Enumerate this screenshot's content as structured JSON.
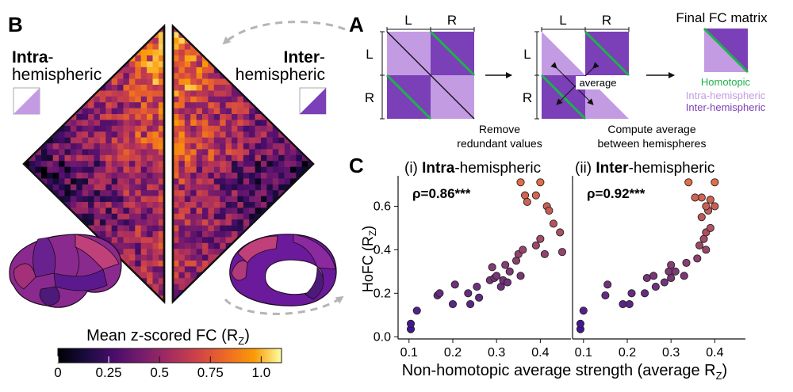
{
  "panel_labels": {
    "a": "A",
    "b": "B",
    "c": "C"
  },
  "panel_a": {
    "left_label": "L",
    "right_label": "R",
    "step1_caption_line1": "Remove",
    "step1_caption_line2": "redundant values",
    "average_label": "average",
    "step2_caption_line1": "Compute average",
    "step2_caption_line2": "between hemispheres",
    "final_title": "Final FC matrix",
    "legend": [
      {
        "label": "Homotopic",
        "color": "#1db34a"
      },
      {
        "label": "Intra-hemispheric",
        "color": "#c39be3"
      },
      {
        "label": "Inter-hemispheric",
        "color": "#7b3fb8"
      }
    ]
  },
  "panel_b": {
    "intra_bold": "Intra",
    "intra_rest": "-",
    "intra_line2": "hemispheric",
    "inter_bold": "Inter",
    "inter_rest": "-",
    "inter_line2": "hemispheric",
    "colorbar": {
      "title_main": "Mean z-scored FC (R",
      "title_sub": "Z",
      "title_close": ")",
      "ticks": [
        "0",
        "0.25",
        "0.5",
        "0.75",
        "1.0"
      ],
      "range": [
        0,
        1.1
      ]
    }
  },
  "colors": {
    "light_purple": "#c39be3",
    "dark_purple": "#7b3fb8",
    "green": "#1db34a",
    "arrow_gray": "#b5b5b5"
  },
  "chart_data": [
    {
      "type": "scatter",
      "title_prefix": "(i) ",
      "title_bold": "Intra",
      "title_rest": "-hemispheric",
      "annotation": "ρ=0.86***",
      "ylabel_main": "HoFC (R",
      "ylabel_sub": "Z",
      "ylabel_close": ")",
      "xlim": [
        0.075,
        0.47
      ],
      "ylim": [
        -0.01,
        0.74
      ],
      "xticks": [
        "0.1",
        "0.2",
        "0.3",
        "0.4"
      ],
      "yticks": [
        "0.0",
        "0.2",
        "0.4",
        "0.6"
      ],
      "points": [
        [
          0.104,
          0.035
        ],
        [
          0.104,
          0.06
        ],
        [
          0.118,
          0.12
        ],
        [
          0.165,
          0.19
        ],
        [
          0.17,
          0.2
        ],
        [
          0.2,
          0.15
        ],
        [
          0.205,
          0.24
        ],
        [
          0.235,
          0.2
        ],
        [
          0.24,
          0.15
        ],
        [
          0.255,
          0.23
        ],
        [
          0.26,
          0.18
        ],
        [
          0.285,
          0.26
        ],
        [
          0.29,
          0.32
        ],
        [
          0.295,
          0.27
        ],
        [
          0.3,
          0.28
        ],
        [
          0.31,
          0.23
        ],
        [
          0.315,
          0.26
        ],
        [
          0.32,
          0.33
        ],
        [
          0.325,
          0.25
        ],
        [
          0.33,
          0.3
        ],
        [
          0.345,
          0.35
        ],
        [
          0.35,
          0.38
        ],
        [
          0.36,
          0.4
        ],
        [
          0.355,
          0.28
        ],
        [
          0.39,
          0.42
        ],
        [
          0.41,
          0.38
        ],
        [
          0.4,
          0.45
        ],
        [
          0.43,
          0.52
        ],
        [
          0.445,
          0.48
        ],
        [
          0.45,
          0.39
        ],
        [
          0.415,
          0.6
        ],
        [
          0.42,
          0.58
        ],
        [
          0.365,
          0.65
        ],
        [
          0.37,
          0.62
        ],
        [
          0.39,
          0.65
        ],
        [
          0.355,
          0.71
        ],
        [
          0.4,
          0.71
        ]
      ]
    },
    {
      "type": "scatter",
      "title_prefix": "(ii) ",
      "title_bold": "Inter",
      "title_rest": "-hemispheric",
      "annotation": "ρ=0.92***",
      "xlabel_main": "Non-homotopic average strength (average R",
      "xlabel_sub": "Z",
      "xlabel_close": ")",
      "xlim": [
        0.075,
        0.47
      ],
      "ylim": [
        -0.01,
        0.74
      ],
      "xticks": [
        "0.1",
        "0.2",
        "0.3",
        "0.4"
      ],
      "points": [
        [
          0.093,
          0.035
        ],
        [
          0.093,
          0.06
        ],
        [
          0.1,
          0.12
        ],
        [
          0.15,
          0.19
        ],
        [
          0.155,
          0.24
        ],
        [
          0.19,
          0.15
        ],
        [
          0.205,
          0.15
        ],
        [
          0.21,
          0.2
        ],
        [
          0.24,
          0.2
        ],
        [
          0.245,
          0.27
        ],
        [
          0.26,
          0.28
        ],
        [
          0.265,
          0.23
        ],
        [
          0.285,
          0.25
        ],
        [
          0.295,
          0.3
        ],
        [
          0.3,
          0.33
        ],
        [
          0.3,
          0.27
        ],
        [
          0.31,
          0.3
        ],
        [
          0.33,
          0.28
        ],
        [
          0.335,
          0.34
        ],
        [
          0.36,
          0.36
        ],
        [
          0.365,
          0.42
        ],
        [
          0.375,
          0.45
        ],
        [
          0.38,
          0.48
        ],
        [
          0.38,
          0.4
        ],
        [
          0.39,
          0.5
        ],
        [
          0.37,
          0.55
        ],
        [
          0.385,
          0.58
        ],
        [
          0.4,
          0.6
        ],
        [
          0.38,
          0.6
        ],
        [
          0.37,
          0.64
        ],
        [
          0.39,
          0.63
        ],
        [
          0.34,
          0.71
        ],
        [
          0.4,
          0.71
        ],
        [
          0.355,
          0.64
        ]
      ]
    }
  ]
}
